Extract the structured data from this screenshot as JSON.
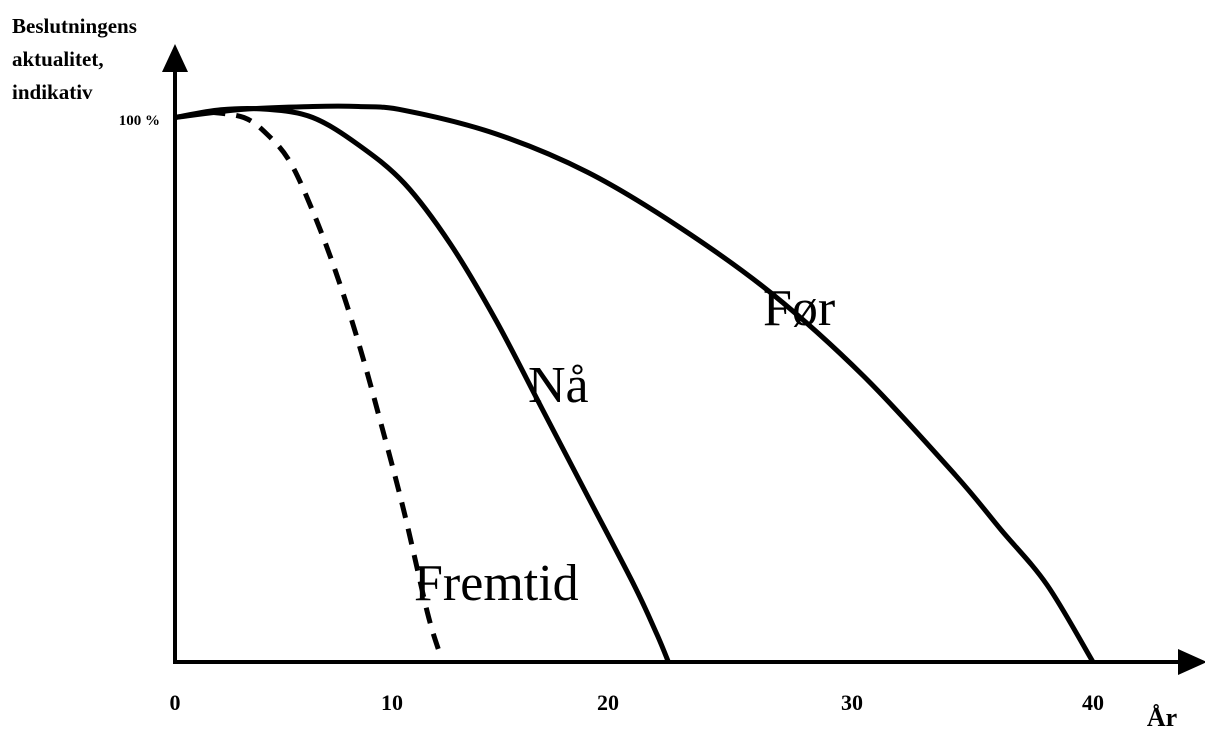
{
  "chart_data": {
    "type": "line",
    "title": "",
    "ylabel": [
      "Beslutningens",
      "aktualitet,",
      "indikativ"
    ],
    "xlabel": "År",
    "y_tick_labels": [
      {
        "value": 100,
        "label": "100 %"
      }
    ],
    "x_ticks": [
      0,
      10,
      20,
      30,
      40
    ],
    "xlim": [
      0,
      45
    ],
    "ylim": [
      0,
      102
    ],
    "grid": false,
    "legend": "none",
    "series": [
      {
        "name": "Før",
        "style": "solid",
        "color": "#000000",
        "x": [
          0,
          3,
          6,
          8,
          10,
          14,
          18,
          22,
          26,
          30,
          34,
          36,
          38,
          40
        ],
        "y": [
          99,
          100.5,
          101,
          101,
          100.3,
          96,
          89,
          79,
          67,
          52,
          34,
          24,
          14,
          0
        ]
      },
      {
        "name": "Nå",
        "style": "solid",
        "color": "#000000",
        "x": [
          0,
          2,
          4,
          6,
          8,
          10,
          12,
          14,
          16,
          18,
          20,
          21,
          21.5
        ],
        "y": [
          99,
          100.4,
          100.5,
          99,
          94,
          87,
          76,
          62,
          46,
          30,
          14,
          5,
          0
        ]
      },
      {
        "name": "Fremtid",
        "style": "dashed",
        "color": "#000000",
        "x": [
          1.5,
          3,
          4,
          5,
          6,
          7,
          8,
          9,
          10,
          11,
          11.5
        ],
        "y": [
          100,
          99,
          96,
          91,
          82,
          71,
          58,
          43,
          27,
          9,
          2
        ]
      }
    ]
  }
}
